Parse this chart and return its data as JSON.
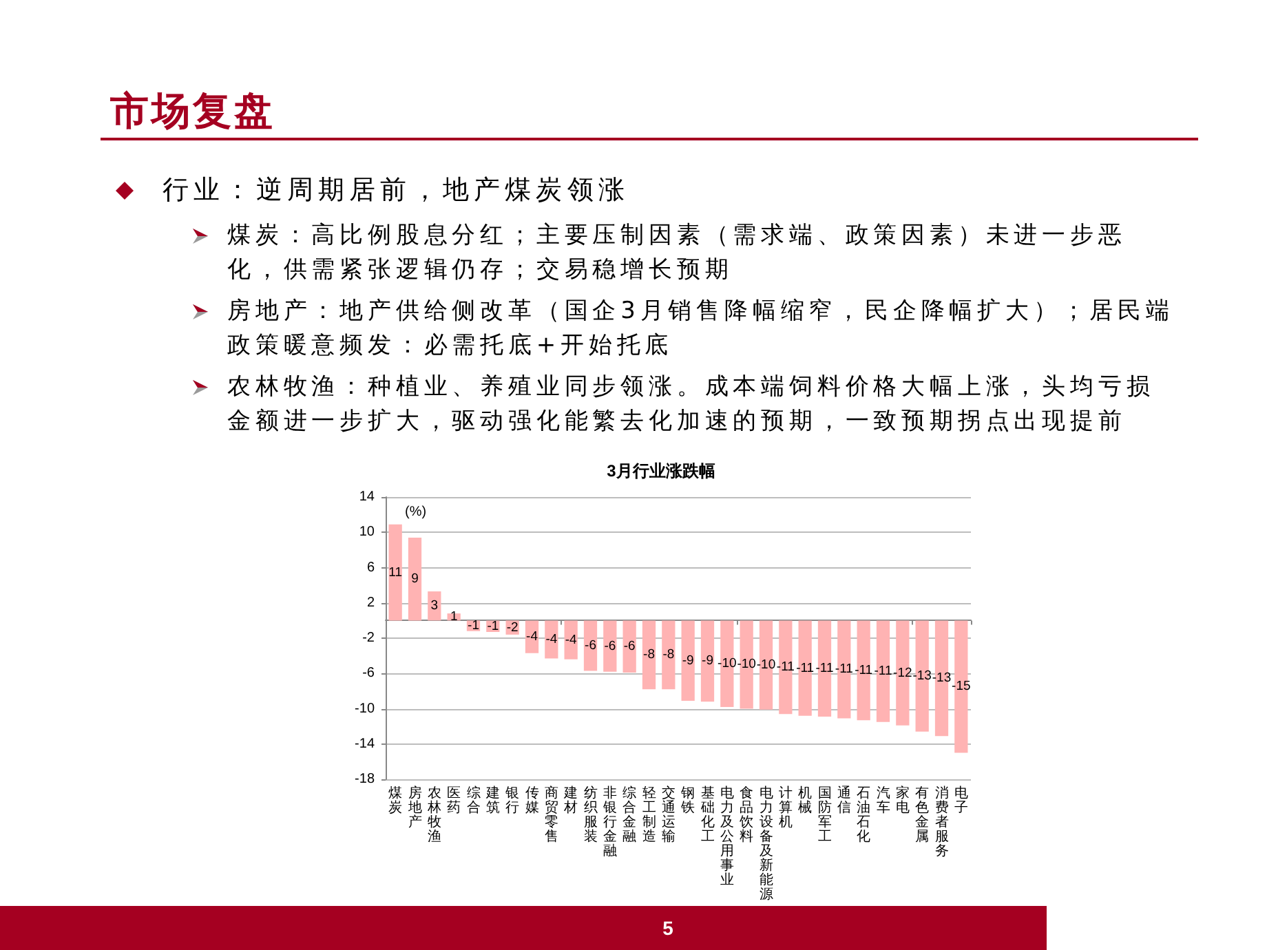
{
  "chart_data": {
    "type": "bar",
    "title": "3月行业涨跌幅",
    "ylabel": "(%)",
    "categories": [
      "煤炭",
      "房地产",
      "农林牧渔",
      "医药",
      "综合",
      "建筑",
      "银行",
      "传媒",
      "商贸零售",
      "建材",
      "纺织服装",
      "非银行金融",
      "综合金融",
      "轻工制造",
      "交通运输",
      "钢铁",
      "基础化工",
      "电力及公用事业",
      "食品饮料",
      "电力设备及新能源",
      "计算机",
      "机械",
      "国防军工",
      "通信",
      "石油石化",
      "汽车",
      "家电",
      "有色金属",
      "消费者服务",
      "电子"
    ],
    "values": [
      10.9,
      9.4,
      3.3,
      0.8,
      -1.2,
      -1.3,
      -1.6,
      -3.7,
      -4.3,
      -4.4,
      -5.7,
      -5.8,
      -5.9,
      -7.8,
      -7.8,
      -9.1,
      -9.2,
      -9.8,
      -10.0,
      -10.1,
      -10.6,
      -10.8,
      -10.9,
      -11.1,
      -11.3,
      -11.5,
      -11.9,
      -12.6,
      -13.1,
      -15.0
    ],
    "value_labels": [
      "11",
      "9",
      "3",
      "1",
      "-1",
      "-1",
      "-2",
      "-4",
      "-4",
      "-4",
      "-6",
      "-6",
      "-6",
      "-8",
      "-8",
      "-9",
      "-9",
      "-10",
      "-10",
      "-10",
      "-11",
      "-11",
      "-11",
      "-11",
      "-11",
      "-11",
      "-12",
      "-13",
      "-13",
      "-15"
    ],
    "color": "#ffb3b3",
    "ylim": [
      -18,
      14
    ],
    "yticks": [
      -18,
      -14,
      -10,
      -6,
      -2,
      2,
      6,
      10,
      14
    ],
    "grid": "y",
    "annotations": [
      "市场复盘",
      "行业：逆周期居前，地产煤炭领涨",
      "煤炭：高比例股息分红；主要压制因素（需求端、政策因素）未进一步恶化，供需紧张逻辑仍存；交易稳增长预期",
      "房地产：地产供给侧改革（国企3月销售降幅缩窄，民企降幅扩大）；居民端政策暖意频发：必需托底+开始托底",
      "农林牧渔：种植业、养殖业同步领涨。成本端饲料价格大幅上涨，头均亏损金额进一步扩大，驱动强化能繁去化加速的预期，一致预期拐点出现提前",
      "5"
    ]
  }
}
